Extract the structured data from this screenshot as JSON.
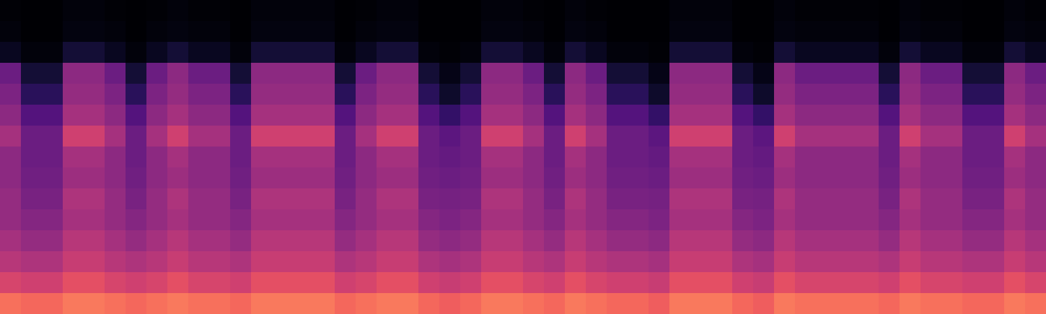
{
  "chart_data": {
    "type": "heatmap",
    "color": "magma",
    "tick_labels": false,
    "zlim": [
      0,
      100
    ],
    "cells": [
      [
        1,
        0,
        0,
        2,
        2,
        1,
        0,
        1,
        2,
        1,
        1,
        0,
        2,
        2,
        2,
        2,
        0,
        1,
        2,
        2,
        0,
        0,
        0,
        2,
        2,
        1,
        0,
        2,
        1,
        0,
        0,
        0,
        2,
        2,
        2,
        0,
        0,
        2,
        1,
        1,
        1,
        1,
        0,
        2,
        1,
        1,
        0,
        0,
        2,
        1
      ],
      [
        2,
        0,
        0,
        3,
        3,
        2,
        0,
        2,
        3,
        2,
        2,
        0,
        3,
        3,
        3,
        3,
        0,
        2,
        3,
        3,
        0,
        0,
        0,
        3,
        3,
        2,
        0,
        3,
        2,
        0,
        0,
        0,
        3,
        3,
        3,
        0,
        0,
        3,
        2,
        2,
        2,
        2,
        0,
        3,
        2,
        2,
        0,
        0,
        3,
        2
      ],
      [
        6,
        2,
        2,
        10,
        10,
        6,
        2,
        6,
        10,
        6,
        6,
        2,
        10,
        10,
        10,
        10,
        2,
        6,
        10,
        10,
        2,
        1,
        2,
        10,
        10,
        6,
        2,
        10,
        6,
        2,
        2,
        1,
        10,
        10,
        10,
        2,
        1,
        10,
        6,
        6,
        6,
        6,
        2,
        10,
        6,
        6,
        2,
        2,
        10,
        6
      ],
      [
        32,
        10,
        10,
        40,
        40,
        32,
        10,
        32,
        40,
        32,
        32,
        10,
        40,
        40,
        40,
        40,
        10,
        32,
        40,
        40,
        10,
        4,
        10,
        40,
        40,
        32,
        10,
        40,
        32,
        10,
        10,
        4,
        40,
        40,
        40,
        10,
        4,
        40,
        32,
        32,
        32,
        32,
        10,
        40,
        32,
        32,
        10,
        10,
        40,
        32
      ],
      [
        36,
        16,
        16,
        42,
        42,
        36,
        16,
        36,
        42,
        36,
        36,
        16,
        42,
        42,
        42,
        42,
        16,
        36,
        42,
        42,
        16,
        8,
        16,
        42,
        42,
        36,
        16,
        42,
        36,
        16,
        16,
        8,
        42,
        42,
        42,
        16,
        8,
        42,
        36,
        36,
        36,
        36,
        16,
        42,
        36,
        36,
        16,
        16,
        42,
        36
      ],
      [
        40,
        26,
        26,
        46,
        46,
        40,
        26,
        40,
        46,
        40,
        40,
        26,
        46,
        46,
        46,
        46,
        26,
        40,
        46,
        46,
        26,
        18,
        26,
        46,
        46,
        40,
        26,
        46,
        40,
        26,
        26,
        18,
        46,
        46,
        46,
        26,
        18,
        46,
        40,
        40,
        40,
        40,
        26,
        46,
        40,
        40,
        26,
        26,
        46,
        40
      ],
      [
        46,
        32,
        32,
        56,
        56,
        46,
        32,
        46,
        56,
        46,
        46,
        32,
        56,
        56,
        56,
        56,
        32,
        46,
        56,
        56,
        32,
        28,
        32,
        56,
        56,
        46,
        32,
        56,
        46,
        32,
        32,
        28,
        56,
        56,
        56,
        32,
        28,
        56,
        46,
        46,
        46,
        46,
        32,
        56,
        46,
        46,
        32,
        32,
        56,
        46
      ],
      [
        40,
        32,
        32,
        46,
        46,
        40,
        32,
        40,
        46,
        40,
        40,
        32,
        46,
        46,
        46,
        46,
        32,
        40,
        46,
        46,
        32,
        30,
        32,
        46,
        46,
        40,
        32,
        46,
        40,
        32,
        32,
        30,
        46,
        46,
        46,
        32,
        30,
        46,
        40,
        40,
        40,
        40,
        32,
        46,
        40,
        40,
        32,
        32,
        46,
        40
      ],
      [
        40,
        33,
        33,
        44,
        44,
        40,
        33,
        40,
        44,
        40,
        40,
        33,
        44,
        44,
        44,
        44,
        33,
        40,
        44,
        44,
        33,
        32,
        33,
        44,
        44,
        40,
        33,
        44,
        40,
        33,
        33,
        32,
        44,
        44,
        44,
        33,
        32,
        44,
        40,
        40,
        40,
        40,
        33,
        44,
        40,
        40,
        33,
        33,
        44,
        40
      ],
      [
        42,
        35,
        35,
        48,
        48,
        42,
        35,
        42,
        48,
        42,
        42,
        35,
        48,
        48,
        48,
        48,
        35,
        42,
        48,
        48,
        35,
        34,
        35,
        48,
        48,
        42,
        35,
        48,
        42,
        35,
        35,
        34,
        48,
        48,
        48,
        35,
        34,
        48,
        42,
        42,
        42,
        42,
        35,
        48,
        42,
        42,
        35,
        35,
        48,
        42
      ],
      [
        42,
        38,
        38,
        46,
        46,
        42,
        38,
        42,
        46,
        42,
        42,
        38,
        46,
        46,
        46,
        46,
        38,
        42,
        46,
        46,
        38,
        36,
        38,
        46,
        46,
        42,
        38,
        46,
        42,
        38,
        38,
        36,
        46,
        46,
        46,
        38,
        36,
        46,
        42,
        42,
        42,
        42,
        38,
        46,
        42,
        42,
        38,
        38,
        46,
        42
      ],
      [
        46,
        42,
        42,
        50,
        50,
        46,
        42,
        46,
        50,
        46,
        46,
        42,
        50,
        50,
        50,
        50,
        42,
        46,
        50,
        50,
        42,
        40,
        42,
        50,
        50,
        46,
        42,
        50,
        46,
        42,
        42,
        40,
        50,
        50,
        50,
        42,
        40,
        50,
        46,
        46,
        46,
        46,
        42,
        50,
        46,
        46,
        42,
        42,
        50,
        46
      ],
      [
        50,
        48,
        48,
        54,
        54,
        50,
        48,
        50,
        54,
        50,
        50,
        48,
        54,
        54,
        54,
        54,
        48,
        50,
        54,
        54,
        48,
        46,
        48,
        54,
        54,
        50,
        48,
        54,
        50,
        48,
        48,
        46,
        54,
        54,
        54,
        48,
        46,
        54,
        50,
        50,
        50,
        50,
        48,
        54,
        50,
        50,
        48,
        48,
        54,
        50
      ],
      [
        58,
        56,
        56,
        62,
        62,
        58,
        56,
        58,
        62,
        58,
        58,
        56,
        62,
        62,
        62,
        62,
        56,
        58,
        62,
        62,
        56,
        54,
        56,
        62,
        62,
        58,
        56,
        62,
        58,
        56,
        56,
        54,
        62,
        62,
        62,
        56,
        54,
        62,
        58,
        58,
        58,
        58,
        56,
        62,
        58,
        58,
        56,
        56,
        62,
        58
      ],
      [
        70,
        68,
        68,
        72,
        72,
        70,
        68,
        70,
        72,
        70,
        70,
        68,
        72,
        72,
        72,
        72,
        68,
        70,
        72,
        72,
        68,
        66,
        68,
        72,
        72,
        70,
        68,
        72,
        70,
        68,
        68,
        66,
        72,
        72,
        72,
        68,
        66,
        72,
        70,
        70,
        70,
        70,
        68,
        72,
        70,
        70,
        68,
        68,
        72,
        70
      ]
    ]
  }
}
